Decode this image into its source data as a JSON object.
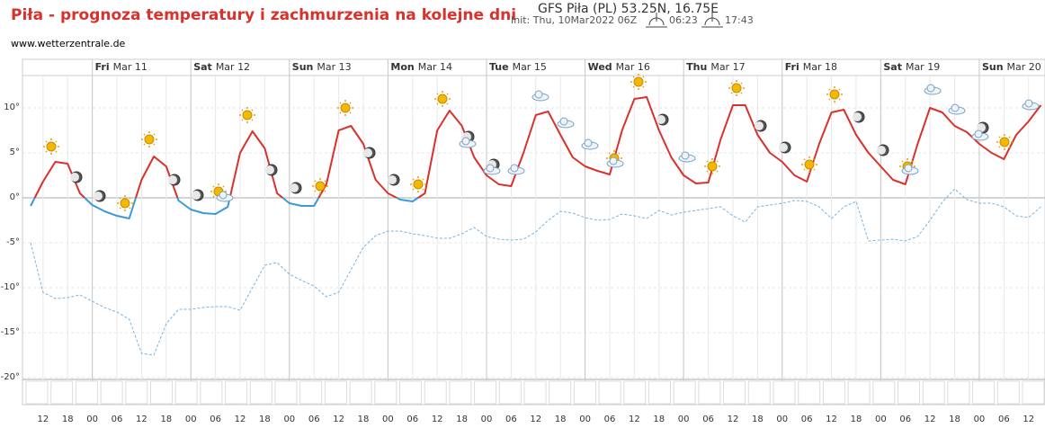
{
  "chart_data": {
    "type": "line",
    "title": "Piła - prognoza temperatury i zachmurzenia na kolejne dni",
    "source": "www.wetterzentrale.de",
    "header": "GFS Piła (PL) 53.25N, 16.75E",
    "init": "Init: Thu, 10Mar2022 06Z",
    "sunrise": "06:23",
    "sunset": "17:43",
    "xlim": [
      "Mar 10 07",
      "Mar 20 16"
    ],
    "ylim": [
      -20.5,
      13.6
    ],
    "yticks": [
      {
        "value": 10,
        "label": "10°"
      },
      {
        "value": 5,
        "label": "5°"
      },
      {
        "value": 0,
        "label": "0°"
      },
      {
        "value": -5,
        "label": "-5°"
      },
      {
        "value": -10,
        "label": "-10°"
      },
      {
        "value": -15,
        "label": "-15°"
      },
      {
        "value": -20,
        "label": "-20°"
      }
    ],
    "day_labels": [
      {
        "value": "Mar 11 00",
        "day": "Fri",
        "date": "Mar 11"
      },
      {
        "value": "Mar 12 00",
        "day": "Sat",
        "date": "Mar 12"
      },
      {
        "value": "Mar 13 00",
        "day": "Sun",
        "date": "Mar 13"
      },
      {
        "value": "Mar 14 00",
        "day": "Mon",
        "date": "Mar 14"
      },
      {
        "value": "Mar 15 00",
        "day": "Tue",
        "date": "Mar 15"
      },
      {
        "value": "Mar 16 00",
        "day": "Wed",
        "date": "Mar 16"
      },
      {
        "value": "Mar 17 00",
        "day": "Thu",
        "date": "Mar 17"
      },
      {
        "value": "Mar 18 00",
        "day": "Fri",
        "date": "Mar 18"
      },
      {
        "value": "Mar 19 00",
        "day": "Sat",
        "date": "Mar 19"
      },
      {
        "value": "Mar 20 00",
        "day": "Sun",
        "date": "Mar 20"
      }
    ],
    "xticks": [
      {
        "value": "Mar 10 12",
        "label": "12"
      },
      {
        "value": "Mar 10 18",
        "label": "18"
      },
      {
        "value": "Mar 11 00",
        "label": "00"
      },
      {
        "value": "Mar 11 06",
        "label": "06"
      },
      {
        "value": "Mar 11 12",
        "label": "12"
      },
      {
        "value": "Mar 11 18",
        "label": "18"
      },
      {
        "value": "Mar 12 00",
        "label": "00"
      },
      {
        "value": "Mar 12 06",
        "label": "06"
      },
      {
        "value": "Mar 12 12",
        "label": "12"
      },
      {
        "value": "Mar 12 18",
        "label": "18"
      },
      {
        "value": "Mar 13 00",
        "label": "00"
      },
      {
        "value": "Mar 13 06",
        "label": "06"
      },
      {
        "value": "Mar 13 12",
        "label": "12"
      },
      {
        "value": "Mar 13 18",
        "label": "18"
      },
      {
        "value": "Mar 14 00",
        "label": "00"
      },
      {
        "value": "Mar 14 06",
        "label": "06"
      },
      {
        "value": "Mar 14 12",
        "label": "12"
      },
      {
        "value": "Mar 14 18",
        "label": "18"
      },
      {
        "value": "Mar 15 00",
        "label": "00"
      },
      {
        "value": "Mar 15 06",
        "label": "06"
      },
      {
        "value": "Mar 15 12",
        "label": "12"
      },
      {
        "value": "Mar 15 18",
        "label": "18"
      },
      {
        "value": "Mar 16 00",
        "label": "00"
      },
      {
        "value": "Mar 16 06",
        "label": "06"
      },
      {
        "value": "Mar 16 12",
        "label": "12"
      },
      {
        "value": "Mar 16 18",
        "label": "18"
      },
      {
        "value": "Mar 17 00",
        "label": "00"
      },
      {
        "value": "Mar 17 06",
        "label": "06"
      },
      {
        "value": "Mar 17 12",
        "label": "12"
      },
      {
        "value": "Mar 17 18",
        "label": "18"
      },
      {
        "value": "Mar 18 00",
        "label": "00"
      },
      {
        "value": "Mar 18 06",
        "label": "06"
      },
      {
        "value": "Mar 18 12",
        "label": "12"
      },
      {
        "value": "Mar 18 18",
        "label": "18"
      },
      {
        "value": "Mar 19 00",
        "label": "00"
      },
      {
        "value": "Mar 19 06",
        "label": "06"
      },
      {
        "value": "Mar 19 12",
        "label": "12"
      },
      {
        "value": "Mar 19 18",
        "label": "18"
      },
      {
        "value": "Mar 20 00",
        "label": "00"
      },
      {
        "value": "Mar 20 06",
        "label": "06"
      },
      {
        "value": "Mar 20 12",
        "label": "12"
      }
    ],
    "x": [
      "Mar 10 09",
      "Mar 10 12",
      "Mar 10 15",
      "Mar 10 18",
      "Mar 10 21",
      "Mar 11 00",
      "Mar 11 03",
      "Mar 11 06",
      "Mar 11 09",
      "Mar 11 12",
      "Mar 11 15",
      "Mar 11 18",
      "Mar 11 21",
      "Mar 12 00",
      "Mar 12 03",
      "Mar 12 06",
      "Mar 12 09",
      "Mar 12 12",
      "Mar 12 15",
      "Mar 12 18",
      "Mar 12 21",
      "Mar 13 00",
      "Mar 13 03",
      "Mar 13 06",
      "Mar 13 09",
      "Mar 13 12",
      "Mar 13 15",
      "Mar 13 18",
      "Mar 13 21",
      "Mar 14 00",
      "Mar 14 03",
      "Mar 14 06",
      "Mar 14 09",
      "Mar 14 12",
      "Mar 14 15",
      "Mar 14 18",
      "Mar 14 21",
      "Mar 15 00",
      "Mar 15 03",
      "Mar 15 06",
      "Mar 15 09",
      "Mar 15 12",
      "Mar 15 15",
      "Mar 15 18",
      "Mar 15 21",
      "Mar 16 00",
      "Mar 16 03",
      "Mar 16 06",
      "Mar 16 09",
      "Mar 16 12",
      "Mar 16 15",
      "Mar 16 18",
      "Mar 16 21",
      "Mar 17 00",
      "Mar 17 03",
      "Mar 17 06",
      "Mar 17 09",
      "Mar 17 12",
      "Mar 17 15",
      "Mar 17 18",
      "Mar 17 21",
      "Mar 18 00",
      "Mar 18 03",
      "Mar 18 06",
      "Mar 18 09",
      "Mar 18 12",
      "Mar 18 15",
      "Mar 18 18",
      "Mar 18 21",
      "Mar 19 00",
      "Mar 19 03",
      "Mar 19 06",
      "Mar 19 09",
      "Mar 19 12",
      "Mar 19 15",
      "Mar 19 18",
      "Mar 19 21",
      "Mar 20 00",
      "Mar 20 03",
      "Mar 20 06",
      "Mar 20 09",
      "Mar 20 12",
      "Mar 20 15"
    ],
    "series": [
      {
        "name": "temperature",
        "color": "#d9312b",
        "cold_color": "#3a9ad9",
        "dashed": false,
        "values": [
          -0.9,
          1.8,
          4.0,
          3.8,
          0.5,
          -0.8,
          -1.5,
          -2.0,
          -2.3,
          2.0,
          4.6,
          3.5,
          -0.3,
          -1.3,
          -1.7,
          -1.8,
          -1.0,
          5.0,
          7.4,
          5.5,
          0.5,
          -0.6,
          -0.9,
          -0.9,
          1.5,
          7.5,
          8.0,
          6.0,
          2.0,
          0.5,
          -0.2,
          -0.4,
          0.5,
          7.5,
          9.7,
          8.0,
          4.5,
          2.5,
          1.5,
          1.3,
          5.0,
          9.2,
          9.6,
          7.0,
          4.5,
          3.5,
          3.0,
          2.6,
          7.5,
          11.0,
          11.2,
          7.5,
          4.5,
          2.5,
          1.6,
          1.7,
          6.5,
          10.3,
          10.3,
          7.0,
          5.0,
          4.0,
          2.5,
          1.8,
          6.0,
          9.5,
          9.8,
          7.0,
          5.0,
          3.5,
          2.0,
          1.5,
          6.0,
          10.0,
          9.5,
          8.0,
          7.3,
          6.0,
          5.0,
          4.3,
          7.0,
          8.5,
          10.3
        ]
      },
      {
        "name": "dewpoint",
        "color": "#7ab3de",
        "dashed": true,
        "values": [
          -5,
          -10.5,
          -11.2,
          -11.1,
          -10.8,
          -11.5,
          -12.2,
          -12.7,
          -13.5,
          -17.3,
          -17.5,
          -14,
          -12.4,
          -12.4,
          -12.2,
          -12.1,
          -12.1,
          -12.5,
          -10,
          -7.5,
          -7.2,
          -8.5,
          -9.2,
          -9.8,
          -11,
          -10.5,
          -8,
          -5.5,
          -4.2,
          -3.7,
          -3.7,
          -4.0,
          -4.2,
          -4.5,
          -4.5,
          -4.0,
          -3.3,
          -4.3,
          -4.6,
          -4.7,
          -4.6,
          -3.8,
          -2.5,
          -1.5,
          -1.7,
          -2.2,
          -2.5,
          -2.4,
          -1.8,
          -2.0,
          -2.3,
          -1.4,
          -1.9,
          -1.6,
          -1.4,
          -1.2,
          -1.0,
          -2.0,
          -2.7,
          -1.0,
          -0.8,
          -0.6,
          -0.3,
          -0.4,
          -1.0,
          -2.3,
          -1.0,
          -0.4,
          -4.8,
          -4.7,
          -4.6,
          -4.8,
          -4.3,
          -2.5,
          -0.5,
          1.0,
          -0.2,
          -0.6,
          -0.6,
          -1.0,
          -2.0,
          -2.2,
          -1.0
        ]
      }
    ]
  }
}
